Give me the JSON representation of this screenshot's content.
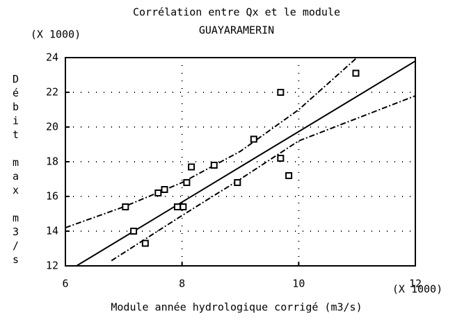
{
  "chart_data": {
    "type": "scatter",
    "title": "Corrélation entre Qx et le module",
    "subtitle": "GUAYARAMERIN",
    "y_multiplier": "(X 1000)",
    "x_multiplier": "(X 1000)",
    "xlabel": "Module année hydrologique corrigé (m3/s)",
    "ylabel": "Débit max m3/s",
    "x": [
      7.03,
      7.17,
      7.37,
      7.59,
      7.7,
      7.92,
      8.02,
      8.08,
      8.16,
      8.55,
      8.95,
      9.23,
      9.69,
      9.69,
      9.83,
      10.98
    ],
    "values": [
      15.4,
      14.0,
      13.3,
      16.2,
      16.4,
      15.4,
      15.4,
      16.8,
      17.7,
      17.8,
      16.8,
      19.3,
      18.2,
      22.0,
      17.2,
      23.1
    ],
    "color": "#000000",
    "regression": {
      "x": [
        6.19,
        12
      ],
      "y": [
        12,
        23.8
      ]
    },
    "upper_band": {
      "x": [
        6,
        7,
        8,
        9,
        10,
        11.1
      ],
      "y": [
        14.2,
        15.4,
        16.8,
        18.6,
        21.0,
        24.3
      ]
    },
    "lower_band": {
      "x": [
        6.79,
        8,
        9,
        10,
        11,
        12
      ],
      "y": [
        12.3,
        14.9,
        17.0,
        19.2,
        20.5,
        21.8
      ]
    },
    "xlim": [
      6,
      12
    ],
    "xticks": [
      6,
      8,
      10,
      12
    ],
    "ylim": [
      12,
      24
    ],
    "yticks": [
      12,
      14,
      16,
      18,
      20,
      22,
      24
    ],
    "grid": true
  }
}
